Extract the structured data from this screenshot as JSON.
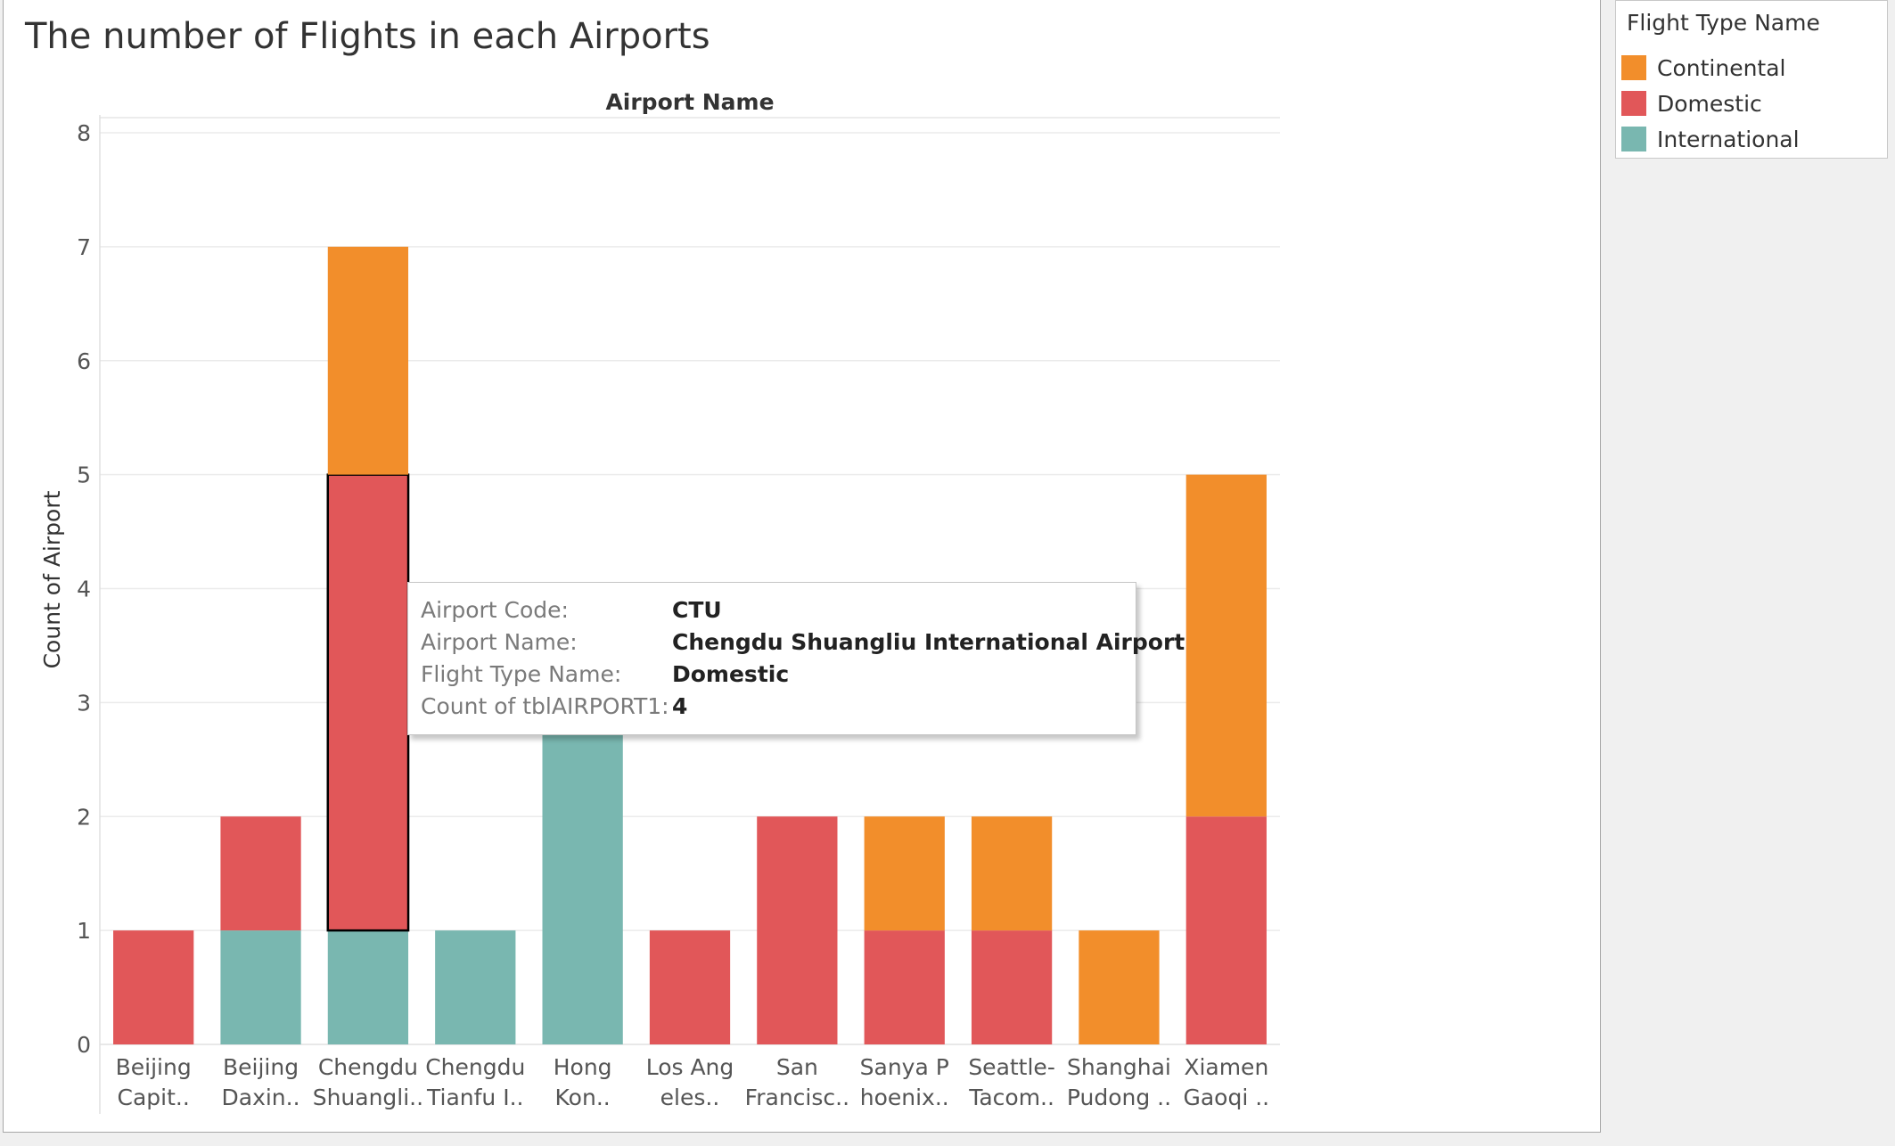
{
  "chart_data": {
    "type": "bar",
    "stacked": true,
    "title": "The number of Flights in each Airports",
    "header_label": "Airport Name",
    "ylabel": "Count of Airport",
    "ylim": [
      0,
      8
    ],
    "yticks": [
      0,
      1,
      2,
      3,
      4,
      5,
      6,
      7,
      8
    ],
    "grid": true,
    "categories": [
      [
        "Beijing",
        "Capit.."
      ],
      [
        "Beijing",
        "Daxin.."
      ],
      [
        "Chengdu",
        "Shuangli.."
      ],
      [
        "Chengdu",
        "Tianfu I.."
      ],
      [
        "Hong",
        "Kon.."
      ],
      [
        "Los Ang",
        "eles.."
      ],
      [
        "San",
        "Francisc.."
      ],
      [
        "Sanya P",
        "hoenix.."
      ],
      [
        "Seattle-",
        "Tacom.."
      ],
      [
        "Shanghai",
        "Pudong .."
      ],
      [
        "Xiamen",
        "Gaoqi .."
      ]
    ],
    "series": [
      {
        "name": "International",
        "color": "#79b7b0",
        "values": [
          0,
          1,
          1,
          1,
          3,
          0,
          0,
          0,
          0,
          0,
          0
        ]
      },
      {
        "name": "Domestic",
        "color": "#e15759",
        "values": [
          1,
          1,
          4,
          0,
          0,
          1,
          2,
          1,
          1,
          0,
          2
        ]
      },
      {
        "name": "Continental",
        "color": "#f28e2b",
        "values": [
          0,
          0,
          2,
          0,
          0,
          0,
          0,
          1,
          1,
          1,
          3
        ]
      }
    ],
    "highlight": {
      "category_index": 2,
      "series": "Domestic"
    }
  },
  "legend": {
    "title": "Flight Type Name",
    "placement": "right",
    "items": [
      {
        "label": "Continental",
        "color": "#f28e2b"
      },
      {
        "label": "Domestic",
        "color": "#e15759"
      },
      {
        "label": "International",
        "color": "#79b7b0"
      }
    ]
  },
  "tooltip": {
    "rows": [
      {
        "key": "Airport Code:",
        "value": "CTU"
      },
      {
        "key": "Airport Name:",
        "value": "Chengdu Shuangliu International Airport"
      },
      {
        "key": "Flight Type Name:",
        "value": "Domestic"
      },
      {
        "key": "Count of tblAIRPORT1:",
        "value": "4"
      }
    ]
  }
}
